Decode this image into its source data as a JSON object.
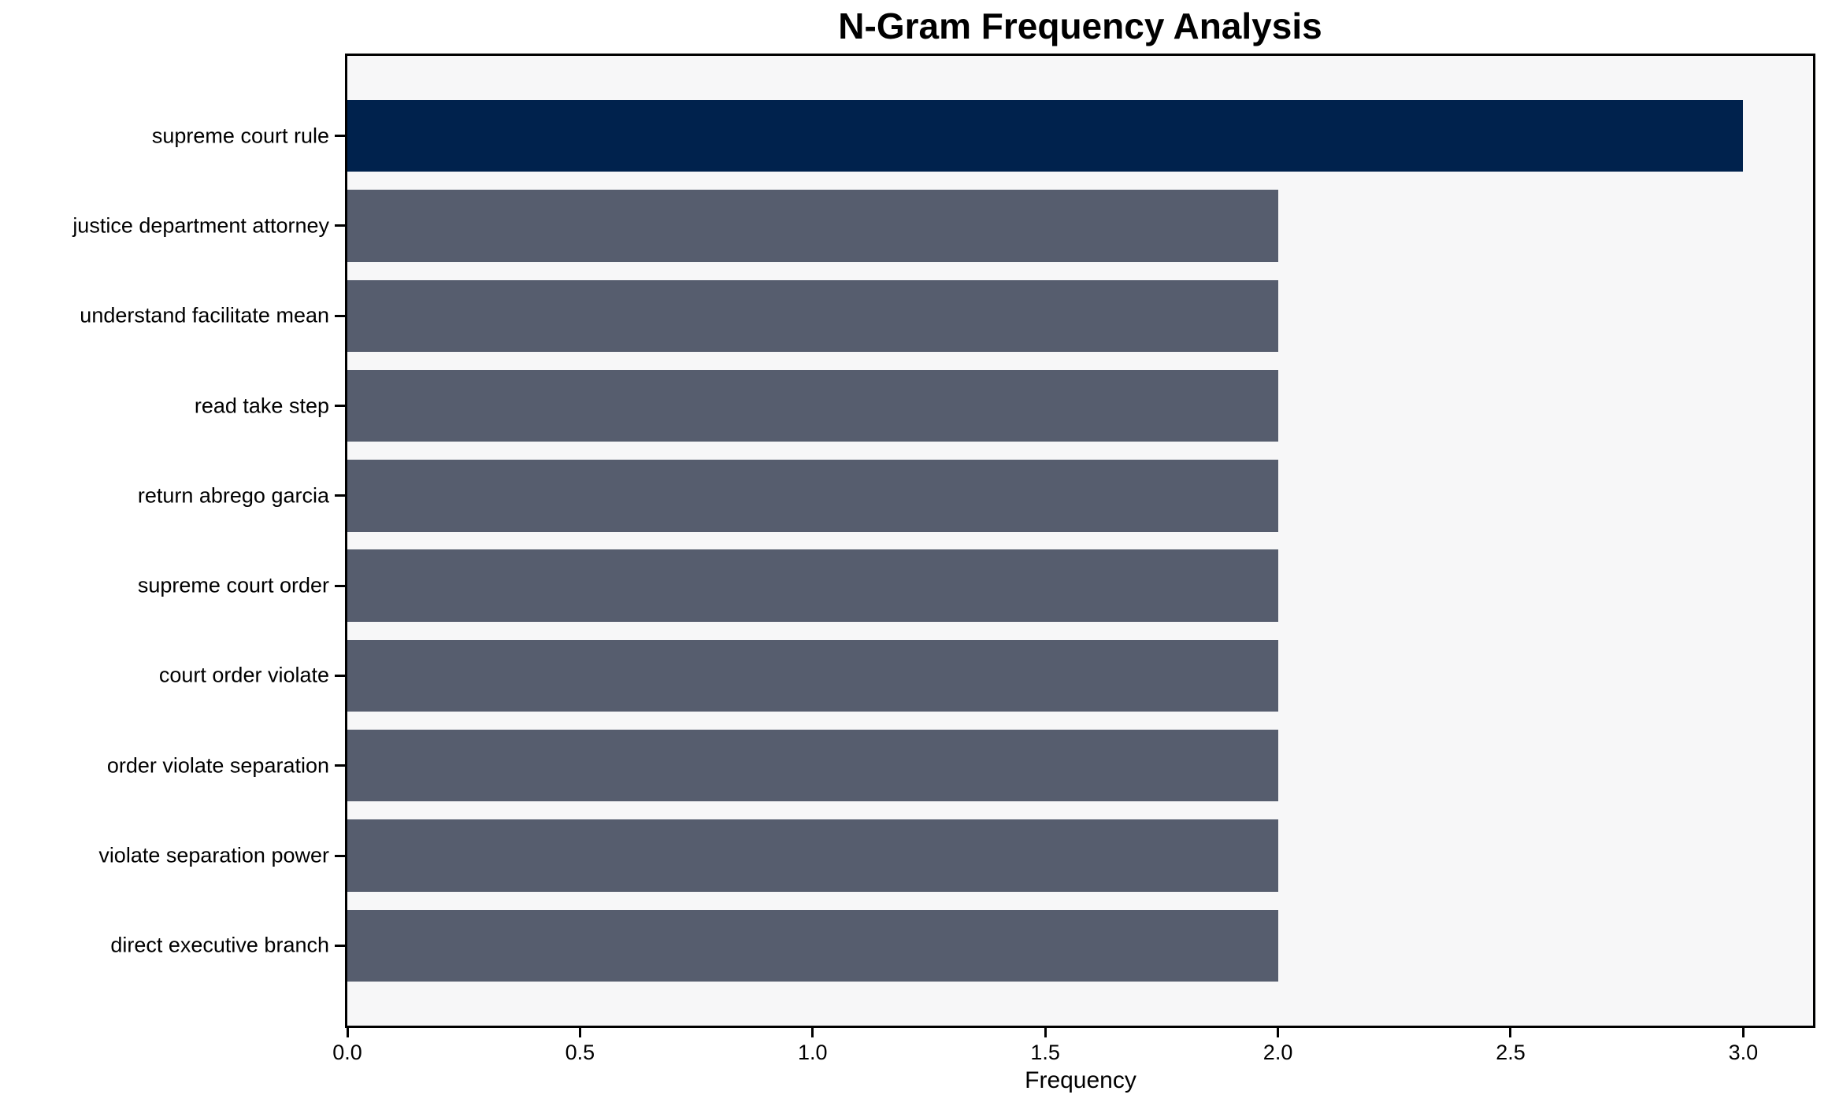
{
  "chart_data": {
    "type": "bar",
    "orientation": "horizontal",
    "title": "N-Gram Frequency Analysis",
    "xlabel": "Frequency",
    "ylabel": "",
    "categories": [
      "supreme court rule",
      "justice department attorney",
      "understand facilitate mean",
      "read take step",
      "return abrego garcia",
      "supreme court order",
      "court order violate",
      "order violate separation",
      "violate separation power",
      "direct executive branch"
    ],
    "values": [
      3,
      2,
      2,
      2,
      2,
      2,
      2,
      2,
      2,
      2
    ],
    "xlim": [
      0,
      3.15
    ],
    "xticks": [
      0.0,
      0.5,
      1.0,
      1.5,
      2.0,
      2.5,
      3.0
    ],
    "xtick_labels": [
      "0.0",
      "0.5",
      "1.0",
      "1.5",
      "2.0",
      "2.5",
      "3.0"
    ],
    "grid": false,
    "legend_position": "none",
    "bar_colors": [
      "#00224D",
      "#565D6E",
      "#565D6E",
      "#565D6E",
      "#565D6E",
      "#565D6E",
      "#565D6E",
      "#565D6E",
      "#565D6E",
      "#565D6E"
    ],
    "colors": {
      "highlight_bar": "#00224D",
      "default_bar": "#565D6E",
      "plot_background": "#F7F7F8",
      "figure_background": "#FFFFFF",
      "spine": "#000000",
      "text": "#000000"
    }
  }
}
